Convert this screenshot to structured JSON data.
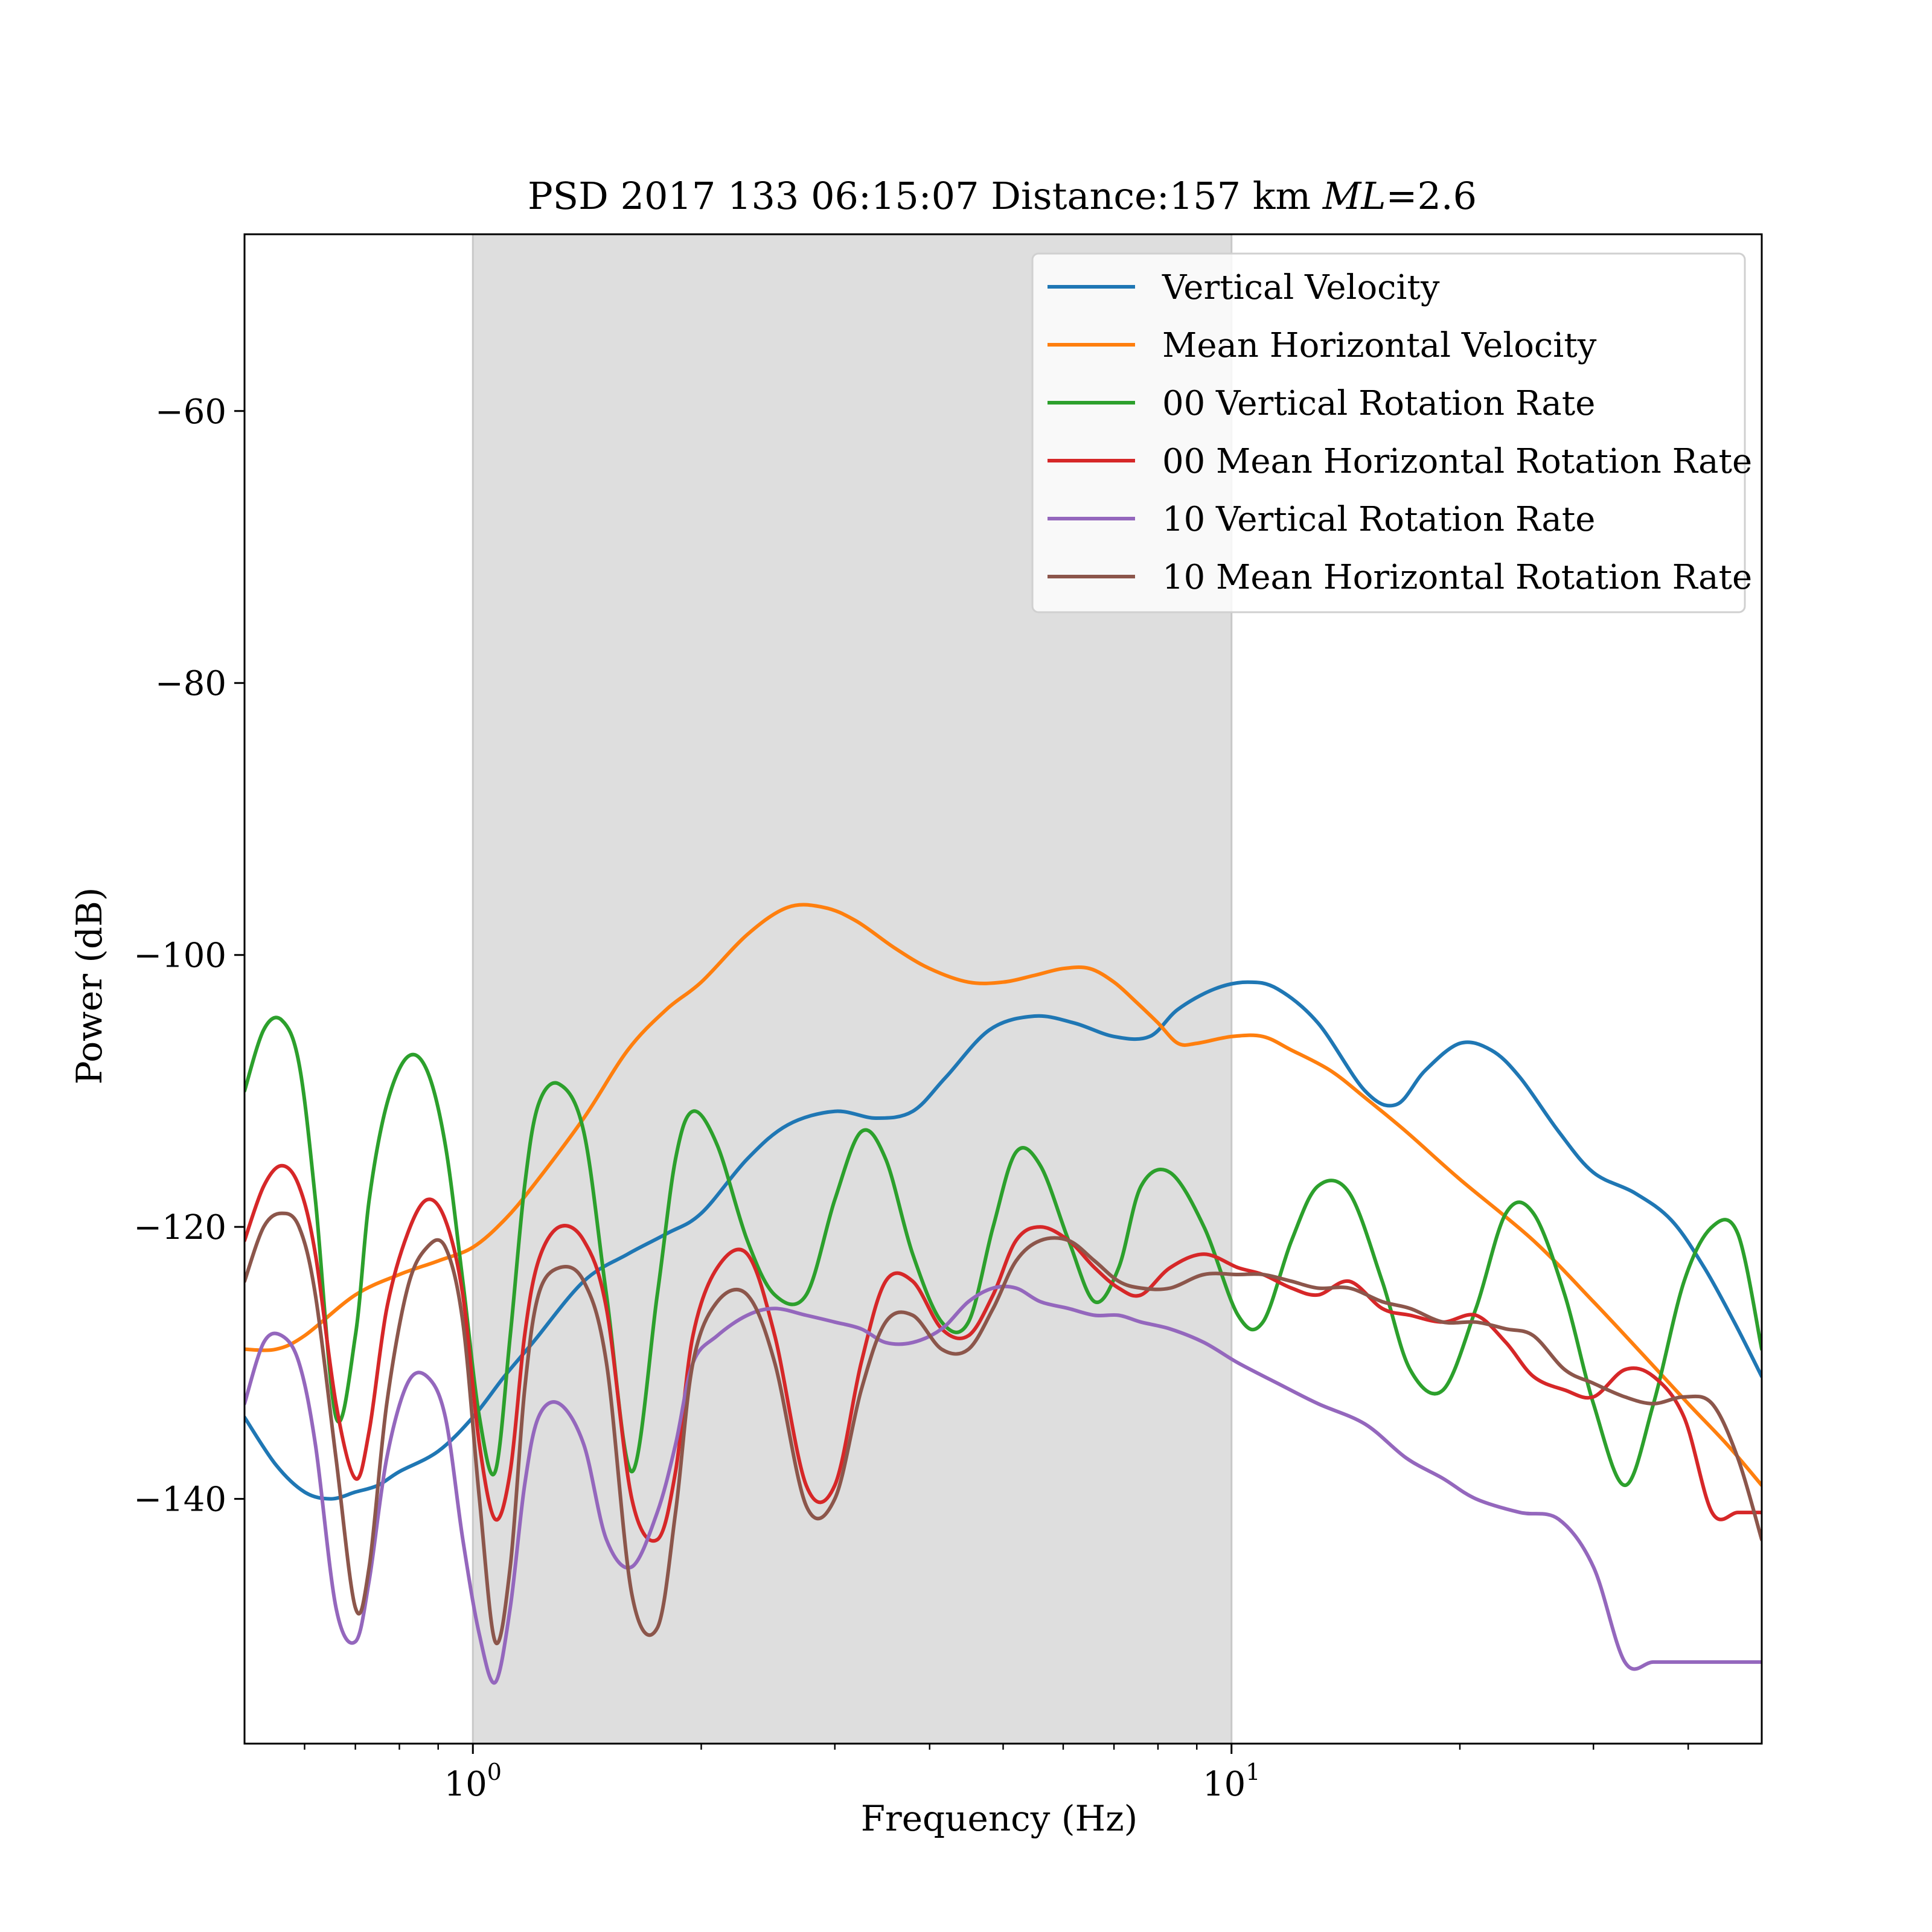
{
  "chart_data": {
    "type": "line",
    "title_prefix": "PSD 2017 133 06:15:07 Distance:157 km ",
    "title_ml": "ML",
    "title_suffix": "=2.6",
    "xlabel": "Frequency (Hz)",
    "ylabel": "Power (dB)",
    "xscale": "log",
    "xlim": [
      0.5,
      50
    ],
    "ylim": [
      -158,
      -47
    ],
    "x_ticks": [
      {
        "value": 1,
        "base": "10",
        "exp": "0"
      },
      {
        "value": 10,
        "base": "10",
        "exp": "1"
      }
    ],
    "y_ticks": [
      {
        "value": -60,
        "label": "−60"
      },
      {
        "value": -80,
        "label": "−80"
      },
      {
        "value": -100,
        "label": "−100"
      },
      {
        "value": -120,
        "label": "−120"
      },
      {
        "value": -140,
        "label": "−140"
      }
    ],
    "shaded_band": {
      "x0": 1,
      "x1": 10,
      "color": "#dcdcdc"
    },
    "legend_position": "upper right",
    "grid": false,
    "series": [
      {
        "name": "Vertical Velocity",
        "color": "#1f77b4",
        "x": [
          0.5,
          0.55,
          0.6,
          0.65,
          0.7,
          0.75,
          0.8,
          0.9,
          1.0,
          1.1,
          1.2,
          1.4,
          1.6,
          1.8,
          2.0,
          2.3,
          2.6,
          3.0,
          3.4,
          3.8,
          4.2,
          4.8,
          5.5,
          6.2,
          7.0,
          7.8,
          8.5,
          9.5,
          10.5,
          11.5,
          13.0,
          15.0,
          16.5,
          18.0,
          20.0,
          22.0,
          24.0,
          27.0,
          30.0,
          34.0,
          38.0,
          42.0,
          46.0,
          50.0
        ],
        "y": [
          -134,
          -137.5,
          -139.5,
          -140,
          -139.5,
          -139,
          -138,
          -136.5,
          -134,
          -131,
          -128.5,
          -124,
          -122,
          -120.5,
          -119,
          -115,
          -112.5,
          -111.5,
          -112,
          -111.5,
          -109,
          -105.5,
          -104.5,
          -105,
          -106,
          -106,
          -104,
          -102.5,
          -102,
          -102.5,
          -105,
          -110,
          -111,
          -108.5,
          -106.5,
          -107,
          -109,
          -113,
          -116,
          -117.5,
          -119.5,
          -123,
          -127,
          -131
        ]
      },
      {
        "name": "Mean Horizontal Velocity",
        "color": "#ff7f0e",
        "x": [
          0.5,
          0.55,
          0.6,
          0.7,
          0.8,
          0.9,
          1.0,
          1.1,
          1.2,
          1.4,
          1.6,
          1.8,
          2.0,
          2.3,
          2.6,
          2.9,
          3.2,
          3.6,
          4.0,
          4.5,
          5.0,
          5.5,
          6.0,
          6.5,
          7.0,
          7.5,
          8.0,
          8.5,
          9.0,
          10.0,
          11.0,
          12.0,
          13.5,
          15.0,
          17.0,
          20.0,
          25.0,
          30.0,
          35.0,
          40.0,
          45.0,
          50.0
        ],
        "y": [
          -129,
          -129,
          -128,
          -125,
          -123.5,
          -122.5,
          -121.5,
          -119.5,
          -117,
          -112,
          -107,
          -104,
          -102,
          -98.5,
          -96.5,
          -96.5,
          -97.5,
          -99.5,
          -101,
          -102,
          -102,
          -101.5,
          -101,
          -101,
          -102,
          -103.5,
          -105,
          -106.5,
          -106.5,
          -106,
          -106,
          -107,
          -108.5,
          -110.5,
          -113,
          -116.5,
          -121,
          -125.5,
          -129.5,
          -133,
          -136,
          -139
        ]
      },
      {
        "name": "00 Vertical Rotation Rate",
        "color": "#2ca02c",
        "x": [
          0.5,
          0.53,
          0.56,
          0.59,
          0.62,
          0.66,
          0.7,
          0.73,
          0.77,
          0.82,
          0.87,
          0.92,
          0.97,
          1.02,
          1.07,
          1.12,
          1.17,
          1.22,
          1.3,
          1.4,
          1.5,
          1.62,
          1.75,
          1.85,
          1.95,
          2.1,
          2.3,
          2.5,
          2.75,
          3.0,
          3.25,
          3.5,
          3.8,
          4.15,
          4.5,
          4.85,
          5.2,
          5.6,
          6.1,
          6.6,
          7.1,
          7.6,
          8.3,
          9.2,
          10.2,
          11.0,
          12.0,
          13.0,
          14.3,
          15.8,
          17.2,
          19.0,
          21.0,
          23.0,
          25.0,
          27.5,
          30.0,
          33.0,
          36.0,
          39.5,
          43.0,
          46.5,
          50.0
        ],
        "y": [
          -110,
          -105.5,
          -104.8,
          -108,
          -118,
          -134,
          -128,
          -118,
          -111,
          -107.5,
          -108.5,
          -114,
          -124,
          -134,
          -138,
          -128,
          -117,
          -111,
          -109.5,
          -113,
          -125,
          -138,
          -125,
          -115,
          -111.5,
          -114,
          -121,
          -125,
          -125,
          -118,
          -113,
          -115,
          -122,
          -127,
          -127,
          -120,
          -114.5,
          -115.5,
          -121,
          -125.5,
          -123,
          -117,
          -116,
          -120,
          -126.5,
          -127,
          -121,
          -117,
          -117.5,
          -124,
          -130.5,
          -132,
          -126,
          -119,
          -119,
          -125,
          -133,
          -139,
          -133,
          -124,
          -120,
          -120.5,
          -129
        ]
      },
      {
        "name": "00 Mean Horizontal Rotation Rate",
        "color": "#d62728",
        "x": [
          0.5,
          0.53,
          0.56,
          0.59,
          0.62,
          0.66,
          0.7,
          0.73,
          0.77,
          0.82,
          0.87,
          0.92,
          0.97,
          1.02,
          1.07,
          1.12,
          1.17,
          1.22,
          1.3,
          1.4,
          1.5,
          1.62,
          1.75,
          1.85,
          1.95,
          2.1,
          2.3,
          2.5,
          2.75,
          3.0,
          3.25,
          3.5,
          3.8,
          4.15,
          4.5,
          4.85,
          5.2,
          5.6,
          6.1,
          6.6,
          7.1,
          7.6,
          8.3,
          9.2,
          10.2,
          11.0,
          12.0,
          13.0,
          14.3,
          15.8,
          17.2,
          19.0,
          21.0,
          23.0,
          25.0,
          27.5,
          30.0,
          33.0,
          36.0,
          39.5,
          43.0,
          46.5,
          50.0
        ],
        "y": [
          -121,
          -117,
          -115.5,
          -117,
          -122,
          -133,
          -138.5,
          -135,
          -126,
          -120.5,
          -118,
          -119.5,
          -125,
          -136,
          -141.5,
          -138,
          -128,
          -122.5,
          -120,
          -121,
          -126,
          -140,
          -143,
          -138,
          -128,
          -123,
          -122,
          -128,
          -139,
          -139,
          -130,
          -124,
          -124,
          -127.5,
          -128,
          -125,
          -121,
          -120,
          -121,
          -123,
          -124.5,
          -125,
          -123,
          -122,
          -123,
          -123.5,
          -124.5,
          -125,
          -124,
          -126,
          -126.5,
          -127,
          -126.5,
          -128.5,
          -131,
          -132,
          -132.5,
          -130.5,
          -131,
          -134,
          -141,
          -141,
          -141
        ]
      },
      {
        "name": "10 Vertical Rotation Rate",
        "color": "#9467bd",
        "x": [
          0.5,
          0.53,
          0.56,
          0.59,
          0.62,
          0.66,
          0.7,
          0.73,
          0.77,
          0.82,
          0.87,
          0.92,
          0.97,
          1.02,
          1.07,
          1.12,
          1.17,
          1.22,
          1.3,
          1.4,
          1.5,
          1.62,
          1.75,
          1.85,
          1.95,
          2.1,
          2.3,
          2.5,
          2.75,
          3.0,
          3.25,
          3.5,
          3.8,
          4.15,
          4.5,
          4.85,
          5.2,
          5.6,
          6.1,
          6.6,
          7.1,
          7.6,
          8.3,
          9.2,
          10.2,
          11.5,
          13.0,
          15.0,
          17.0,
          19.0,
          21.0,
          24.0,
          27.0,
          30.0,
          33.0,
          36.0,
          40.0,
          44.0,
          47.0,
          50.0
        ],
        "y": [
          -133,
          -128.5,
          -128,
          -130,
          -136,
          -148,
          -150.5,
          -146,
          -137,
          -131.5,
          -131,
          -134,
          -143,
          -150,
          -153.5,
          -148,
          -139,
          -134,
          -133,
          -136,
          -143,
          -145,
          -141,
          -136,
          -130,
          -128,
          -126.5,
          -126,
          -126.5,
          -127,
          -127.5,
          -128.5,
          -128.5,
          -127.5,
          -125.5,
          -124.5,
          -124.5,
          -125.5,
          -126,
          -126.5,
          -126.5,
          -127,
          -127.5,
          -128.5,
          -130,
          -131.5,
          -133,
          -134.5,
          -137,
          -138.5,
          -140,
          -141,
          -141.5,
          -145,
          -152,
          -152,
          -152,
          -152,
          -152,
          -152
        ]
      },
      {
        "name": "10 Mean Horizontal Rotation Rate",
        "color": "#8c564b",
        "x": [
          0.5,
          0.53,
          0.56,
          0.59,
          0.62,
          0.66,
          0.7,
          0.73,
          0.77,
          0.82,
          0.87,
          0.92,
          0.97,
          1.02,
          1.07,
          1.12,
          1.17,
          1.22,
          1.3,
          1.4,
          1.5,
          1.62,
          1.75,
          1.85,
          1.95,
          2.1,
          2.3,
          2.5,
          2.75,
          3.0,
          3.25,
          3.5,
          3.8,
          4.15,
          4.5,
          4.85,
          5.2,
          5.6,
          6.1,
          6.6,
          7.1,
          7.6,
          8.3,
          9.2,
          10.2,
          11.0,
          12.0,
          13.0,
          14.3,
          15.8,
          17.2,
          19.0,
          21.0,
          23.0,
          25.0,
          27.5,
          30.0,
          33.0,
          36.0,
          39.5,
          43.0,
          46.5,
          50.0
        ],
        "y": [
          -124,
          -120,
          -119,
          -120,
          -125,
          -137,
          -148,
          -145,
          -133,
          -124.5,
          -121.5,
          -121.5,
          -127,
          -140,
          -150.5,
          -145,
          -132,
          -125,
          -123,
          -124,
          -130,
          -147,
          -149.5,
          -141,
          -130,
          -125.5,
          -125,
          -130,
          -140.5,
          -140,
          -132,
          -127,
          -126.5,
          -129,
          -129,
          -126,
          -122.5,
          -121,
          -121,
          -122.5,
          -124,
          -124.5,
          -124.5,
          -123.5,
          -123.5,
          -123.5,
          -124,
          -124.5,
          -124.5,
          -125.5,
          -126,
          -127,
          -127,
          -127.5,
          -128,
          -130.5,
          -131.5,
          -132.5,
          -133,
          -132.5,
          -133,
          -137,
          -143
        ]
      }
    ]
  }
}
